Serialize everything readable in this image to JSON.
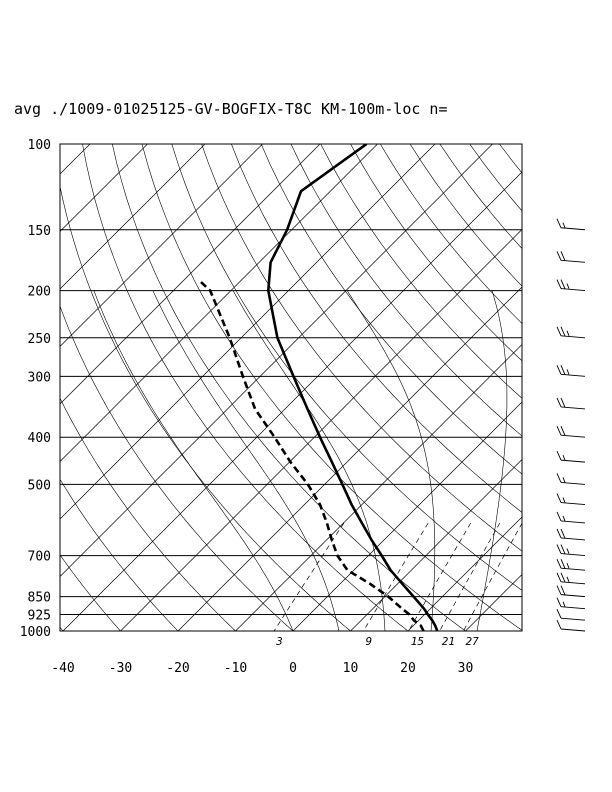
{
  "chart_data": {
    "type": "skew-t log-p diagram",
    "title": "avg ./1009-01025125-GV-BOGFIX-T8C KM-100m-loc n=",
    "pressure_ticks": [
      100,
      150,
      200,
      250,
      300,
      400,
      500,
      700,
      850,
      925,
      1000
    ],
    "temperature_ticks": [
      -40,
      -30,
      -20,
      -10,
      0,
      10,
      20,
      30
    ],
    "mixing_ratio_labels": [
      "3",
      "9",
      "15",
      "21",
      "27"
    ],
    "mixing_ratio_values_gkg": [
      3,
      9,
      15,
      21,
      27
    ],
    "xlim_C_at_1000": [
      -40,
      40
    ],
    "ylim_hPa": [
      1000,
      100
    ],
    "series": [
      {
        "role": "temperature",
        "style": "solid-thick",
        "p": [
          1000,
          975,
          950,
          925,
          900,
          850,
          800,
          750,
          700,
          650,
          600,
          550,
          500,
          450,
          400,
          350,
          300,
          250,
          200,
          175,
          150,
          125,
          100
        ],
        "t": [
          25.1,
          23.8,
          22.3,
          20.6,
          18.9,
          15.0,
          10.8,
          6.4,
          2.3,
          -2.2,
          -6.8,
          -11.8,
          -16.9,
          -22.6,
          -29.0,
          -36.1,
          -44.2,
          -53.7,
          -63.5,
          -68.0,
          -70.8,
          -75.1,
          -71.9
        ]
      },
      {
        "role": "dewpoint",
        "style": "dashed-thick",
        "p": [
          1000,
          975,
          950,
          925,
          900,
          850,
          800,
          750,
          700,
          650,
          600,
          550,
          500,
          450,
          400,
          350,
          300,
          250,
          200,
          190
        ],
        "t": [
          22.7,
          21.3,
          19.1,
          17.4,
          15.1,
          10.6,
          5.2,
          -1.1,
          -5.4,
          -9.1,
          -12.9,
          -17.3,
          -22.9,
          -29.8,
          -36.9,
          -45.2,
          -53.0,
          -62.0,
          -73.6,
          -77.5
        ]
      }
    ],
    "wind_profile": {
      "units": "kt (estimated from barbs)",
      "p": [
        1000,
        950,
        900,
        850,
        800,
        750,
        700,
        650,
        600,
        550,
        500,
        450,
        400,
        350,
        300,
        250,
        200,
        175,
        150
      ],
      "speed": [
        10,
        10,
        15,
        20,
        25,
        25,
        25,
        20,
        15,
        15,
        15,
        15,
        20,
        20,
        25,
        25,
        25,
        20,
        15
      ]
    }
  }
}
